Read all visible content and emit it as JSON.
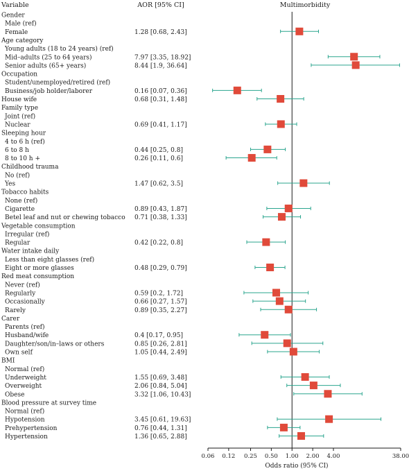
{
  "chart_data": {
    "type": "forest",
    "headers": {
      "variable": "Variable",
      "aor": "AOR [95% CI]",
      "panel": "Multimorbidity"
    },
    "xlabel": "Odds ratio (95% CI)",
    "x_scale": "log2",
    "xlim": [
      0.06,
      38.0
    ],
    "xticks": [
      "0.06",
      "0.12",
      "0.25",
      "0.50",
      "1.00",
      "2.00",
      "4.00",
      "38.00"
    ],
    "reference_line": 1.0,
    "colors": {
      "marker": "#e04a3a",
      "ci": "#2aa58e",
      "axis": "#1a1a1a"
    },
    "rows": [
      {
        "label": "Gender",
        "level": 0
      },
      {
        "label": "Male (ref)",
        "level": 1
      },
      {
        "label": "Female",
        "level": 1,
        "aor_text": "1.28 [0.68, 2.43]",
        "or": 1.28,
        "lo": 0.68,
        "hi": 2.43
      },
      {
        "label": "Age category",
        "level": 0
      },
      {
        "label": "Young adults (18 to 24 years) (ref)",
        "level": 1
      },
      {
        "label": "Mid–adults (25 to 64 years)",
        "level": 1,
        "aor_text": "7.97 [3.35, 18.92]",
        "or": 7.97,
        "lo": 3.35,
        "hi": 18.92
      },
      {
        "label": "Senior adults (65+ years)",
        "level": 1,
        "aor_text": "8.44 [1.9, 36.64]",
        "or": 8.44,
        "lo": 1.9,
        "hi": 36.64
      },
      {
        "label": "Occupation",
        "level": 0
      },
      {
        "label": "Student/unemployed/retired (ref)",
        "level": 1
      },
      {
        "label": "Business/job holder/laborer",
        "level": 1,
        "aor_text": "0.16 [0.07, 0.36]",
        "or": 0.16,
        "lo": 0.07,
        "hi": 0.36
      },
      {
        "label": "House wife",
        "level": 0,
        "aor_text": "0.68 [0.31, 1.48]",
        "or": 0.68,
        "lo": 0.31,
        "hi": 1.48
      },
      {
        "label": "Family type",
        "level": 0
      },
      {
        "label": "Joint (ref)",
        "level": 1
      },
      {
        "label": "Nuclear",
        "level": 1,
        "aor_text": "0.69 [0.41, 1.17]",
        "or": 0.69,
        "lo": 0.41,
        "hi": 1.17
      },
      {
        "label": "Sleeping hour",
        "level": 0
      },
      {
        "label": "4 to 6 h (ref)",
        "level": 1
      },
      {
        "label": "6 to 8 h",
        "level": 1,
        "aor_text": "0.44 [0.25, 0.8]",
        "or": 0.44,
        "lo": 0.25,
        "hi": 0.8
      },
      {
        "label": "8 to 10 h +",
        "level": 1,
        "aor_text": "0.26 [0.11, 0.6]",
        "or": 0.26,
        "lo": 0.11,
        "hi": 0.6
      },
      {
        "label": "Childhood trauma",
        "level": 0
      },
      {
        "label": "No (ref)",
        "level": 1
      },
      {
        "label": "Yes",
        "level": 1,
        "aor_text": "1.47 [0.62, 3.5]",
        "or": 1.47,
        "lo": 0.62,
        "hi": 3.5
      },
      {
        "label": "Tobacco habits",
        "level": 0
      },
      {
        "label": "None (ref)",
        "level": 1
      },
      {
        "label": "Cigarette",
        "level": 1,
        "aor_text": "0.89 [0.43, 1.87]",
        "or": 0.89,
        "lo": 0.43,
        "hi": 1.87
      },
      {
        "label": "Betel leaf and nut or chewing tobacco",
        "level": 1,
        "aor_text": "0.71 [0.38, 1.33]",
        "or": 0.71,
        "lo": 0.38,
        "hi": 1.33
      },
      {
        "label": "Vegetable consumption",
        "level": 0
      },
      {
        "label": "Irregular (ref)",
        "level": 1
      },
      {
        "label": "Regular",
        "level": 1,
        "aor_text": "0.42 [0.22, 0.8]",
        "or": 0.42,
        "lo": 0.22,
        "hi": 0.8
      },
      {
        "label": "Water intake daily",
        "level": 0
      },
      {
        "label": "Less than eight glasses (ref)",
        "level": 1
      },
      {
        "label": "Eight or more glasses",
        "level": 1,
        "aor_text": "0.48 [0.29, 0.79]",
        "or": 0.48,
        "lo": 0.29,
        "hi": 0.79
      },
      {
        "label": "Red meat consumption",
        "level": 0
      },
      {
        "label": "Never (ref)",
        "level": 1
      },
      {
        "label": "Regularly",
        "level": 1,
        "aor_text": "0.59 [0.2, 1.72]",
        "or": 0.59,
        "lo": 0.2,
        "hi": 1.72
      },
      {
        "label": "Occasionally",
        "level": 1,
        "aor_text": "0.66 [0.27, 1.57]",
        "or": 0.66,
        "lo": 0.27,
        "hi": 1.57
      },
      {
        "label": "Rarely",
        "level": 1,
        "aor_text": "0.89 [0.35, 2.27]",
        "or": 0.89,
        "lo": 0.35,
        "hi": 2.27
      },
      {
        "label": "Carer",
        "level": 0
      },
      {
        "label": "Parents (ref)",
        "level": 1
      },
      {
        "label": "Husband/wife",
        "level": 1,
        "aor_text": "0.4 [0.17, 0.95]",
        "or": 0.4,
        "lo": 0.17,
        "hi": 0.95
      },
      {
        "label": "Daughter/son/in–laws or others",
        "level": 1,
        "aor_text": "0.85 [0.26, 2.81]",
        "or": 0.85,
        "lo": 0.26,
        "hi": 2.81
      },
      {
        "label": "Own self",
        "level": 1,
        "aor_text": "1.05 [0.44, 2.49]",
        "or": 1.05,
        "lo": 0.44,
        "hi": 2.49
      },
      {
        "label": "BMI",
        "level": 0
      },
      {
        "label": "Normal (ref)",
        "level": 1
      },
      {
        "label": "Underweight",
        "level": 1,
        "aor_text": "1.55 [0.69, 3.48]",
        "or": 1.55,
        "lo": 0.69,
        "hi": 3.48
      },
      {
        "label": "Overweight",
        "level": 1,
        "aor_text": "2.06 [0.84, 5.04]",
        "or": 2.06,
        "lo": 0.84,
        "hi": 5.04
      },
      {
        "label": "Obese",
        "level": 1,
        "aor_text": "3.32 [1.06, 10.43]",
        "or": 3.32,
        "lo": 1.06,
        "hi": 10.43
      },
      {
        "label": "Blood pressure at survey time",
        "level": 0
      },
      {
        "label": "Normal (ref)",
        "level": 1
      },
      {
        "label": "Hypotension",
        "level": 1,
        "aor_text": "3.45 [0.61, 19.63]",
        "or": 3.45,
        "lo": 0.61,
        "hi": 19.63
      },
      {
        "label": "Prehypertension",
        "level": 1,
        "aor_text": "0.76 [0.44, 1.31]",
        "or": 0.76,
        "lo": 0.44,
        "hi": 1.31
      },
      {
        "label": "Hypertension",
        "level": 1,
        "aor_text": "1.36 [0.65, 2.88]",
        "or": 1.36,
        "lo": 0.65,
        "hi": 2.88
      }
    ]
  }
}
